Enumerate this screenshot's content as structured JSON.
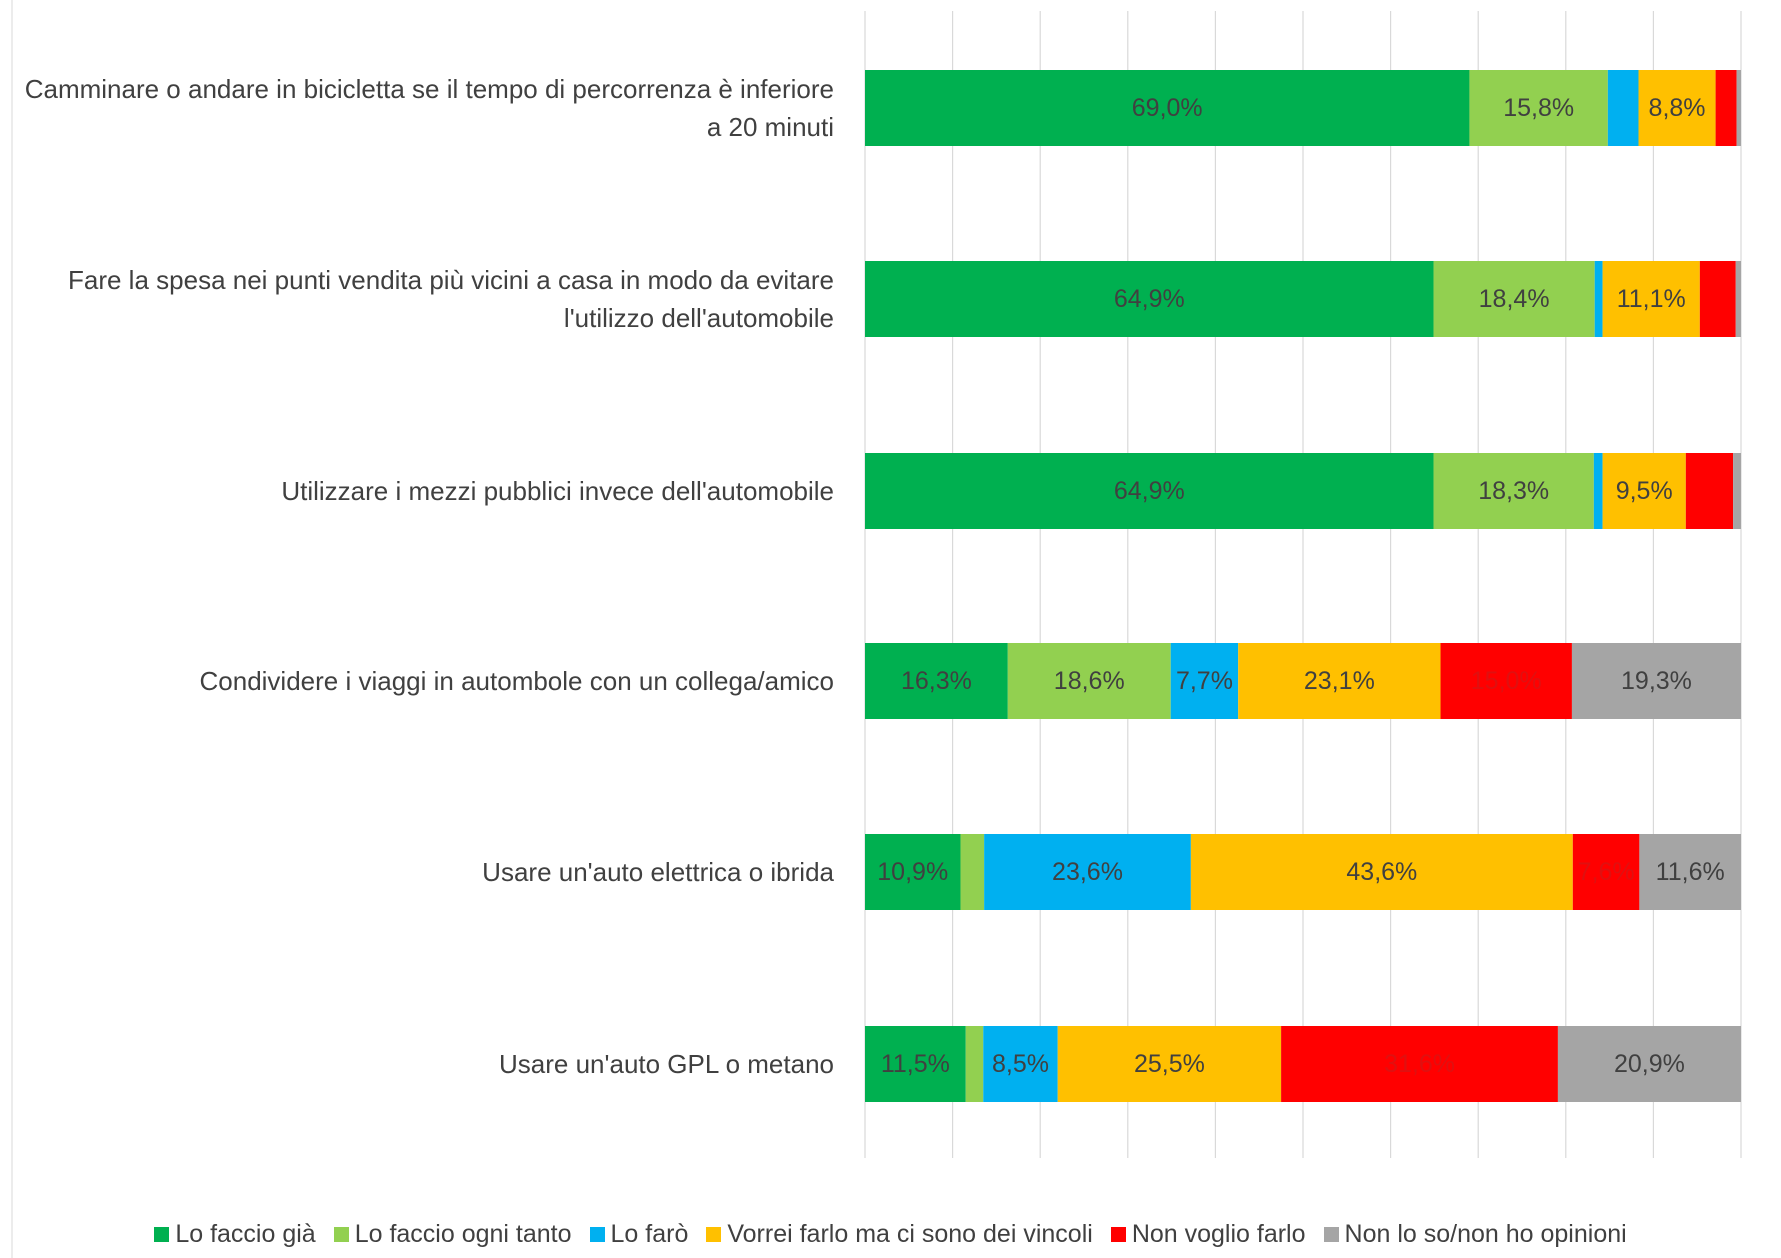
{
  "chart_data": {
    "type": "stacked-bar-horizontal",
    "categories": [
      "Camminare o andare in bicicletta se il tempo di percorrenza è inferiore a 20 minuti",
      "Fare la spesa nei punti vendita più vicini a casa in modo da evitare l'utilizzo dell'automobile",
      "Utilizzare i mezzi pubblici invece dell'automobile",
      "Condividere i viaggi in autombole con un collega/amico",
      "Usare un'auto elettrica o ibrida",
      "Usare un'auto GPL o metano"
    ],
    "series": [
      {
        "name": "Lo faccio già",
        "color": "#00b050",
        "label_color": "#404040",
        "values": [
          69.0,
          64.9,
          64.9,
          16.3,
          10.9,
          11.5
        ],
        "value_labels": [
          "69,0%",
          "64,9%",
          "64,9%",
          "16,3%",
          "10,9%",
          "11,5%"
        ]
      },
      {
        "name": "Lo faccio ogni tanto",
        "color": "#92d050",
        "label_color": "#404040",
        "values": [
          15.8,
          18.4,
          18.3,
          18.6,
          2.7,
          2.0
        ],
        "value_labels": [
          "15,8%",
          "18,4%",
          "18,3%",
          "18,6%",
          null,
          null
        ]
      },
      {
        "name": "Lo farò",
        "color": "#00b0f0",
        "label_color": "#404040",
        "values": [
          3.5,
          0.9,
          1.0,
          7.7,
          23.6,
          8.5
        ],
        "value_labels": [
          null,
          null,
          null,
          "7,7%",
          "23,6%",
          "8,5%"
        ]
      },
      {
        "name": "Vorrei farlo ma ci sono dei vincoli",
        "color": "#ffc000",
        "label_color": "#404040",
        "values": [
          8.8,
          11.1,
          9.5,
          23.1,
          43.6,
          25.5
        ],
        "value_labels": [
          "8,8%",
          "11,1%",
          "9,5%",
          "23,1%",
          "43,6%",
          "25,5%"
        ]
      },
      {
        "name": "Non voglio farlo",
        "color": "#ff0000",
        "label_color": "#e01010",
        "values": [
          2.4,
          4.1,
          5.4,
          15.0,
          7.6,
          31.6
        ],
        "value_labels": [
          null,
          null,
          null,
          "15,0%",
          "7,6%",
          "31,6%"
        ]
      },
      {
        "name": "Non lo so/non ho opinioni",
        "color": "#a5a5a5",
        "label_color": "#404040",
        "values": [
          0.5,
          0.6,
          0.9,
          19.3,
          11.6,
          20.9
        ],
        "value_labels": [
          null,
          null,
          null,
          "19,3%",
          "11,6%",
          "20,9%"
        ]
      }
    ],
    "xlim": [
      0,
      100
    ],
    "xticks": [
      0,
      10,
      20,
      30,
      40,
      50,
      60,
      70,
      80,
      90,
      100
    ],
    "grid": true,
    "legend": "bottom"
  }
}
